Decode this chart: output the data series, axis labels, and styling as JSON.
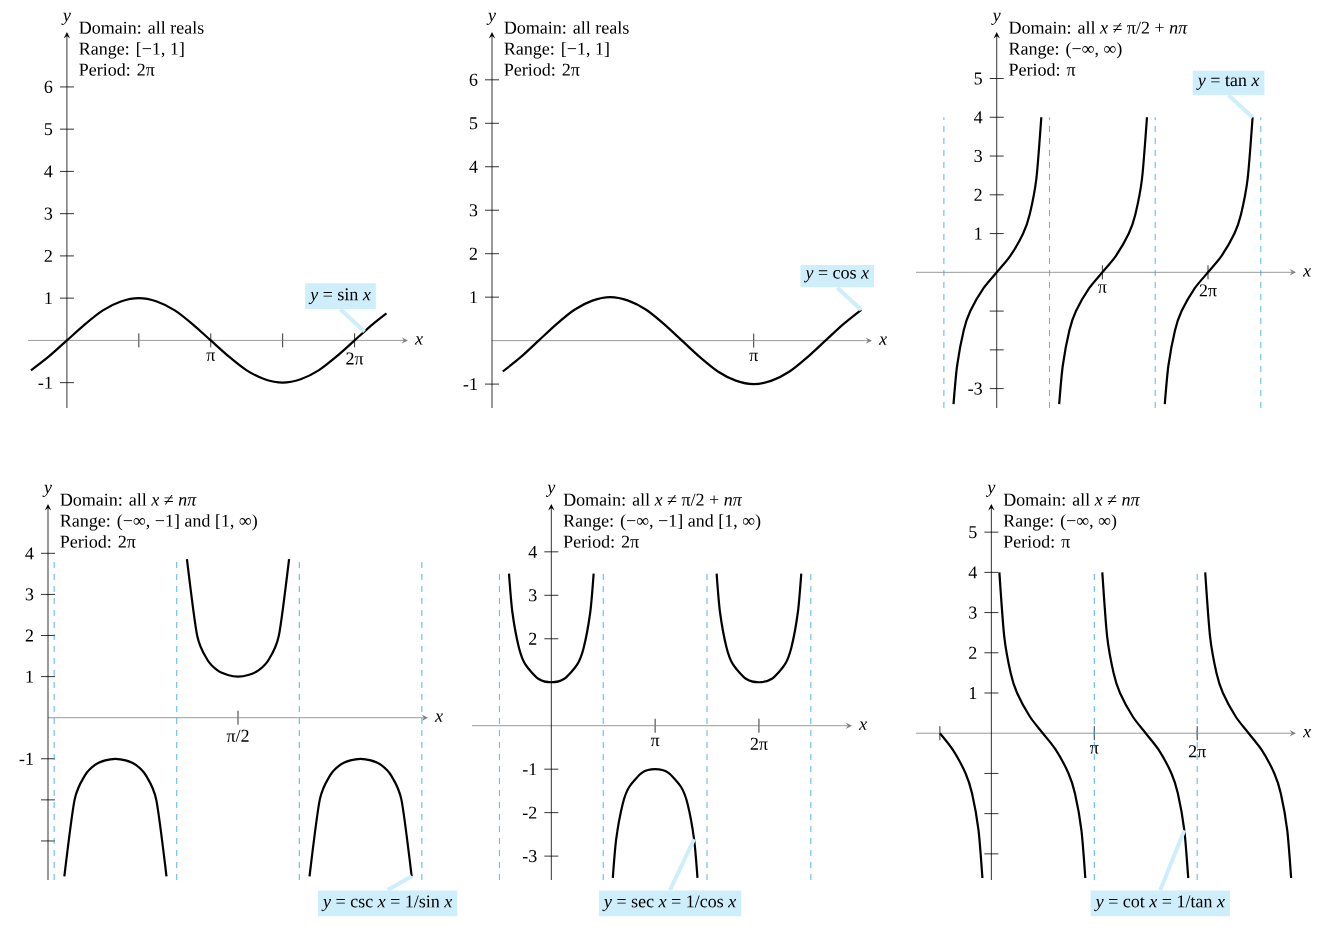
{
  "chart_data": [
    {
      "type": "line",
      "xlabel": "x",
      "ylabel": "y",
      "xlim": [
        -0.85,
        7.45
      ],
      "ylim": [
        -1.6,
        7.3
      ],
      "xticks": [
        {
          "value": 1.5708,
          "label": null
        },
        {
          "value": 3.1416,
          "label": "π"
        },
        {
          "value": 4.7124,
          "label": null
        },
        {
          "value": 6.2832,
          "label": "2π"
        }
      ],
      "yticks": [
        -1,
        1,
        2,
        3,
        4,
        5,
        6
      ],
      "series": [
        {
          "color": "#000000",
          "x": [
            -0.7854,
            -0.3927,
            0,
            0.3927,
            0.7854,
            1.1781,
            1.5708,
            1.9635,
            2.3562,
            2.7489,
            3.1416,
            3.5343,
            3.927,
            4.3197,
            4.7124,
            5.1051,
            5.4978,
            5.8905,
            6.2832,
            6.6759,
            6.98
          ],
          "values": [
            -0.71,
            -0.38,
            0,
            0.38,
            0.71,
            0.92,
            1,
            0.92,
            0.71,
            0.38,
            0,
            -0.38,
            -0.71,
            -0.92,
            -1,
            -0.92,
            -0.71,
            -0.38,
            0,
            0.38,
            0.64
          ]
        }
      ],
      "annotations": [
        "Domain:  all reals",
        "Range:  [−1, 1]",
        "Period:  2π",
        {
          "text": "*y* = sin *x*",
          "x": 6.5,
          "y": 0.21
        }
      ]
    },
    {
      "type": "line",
      "xlabel": "x",
      "ylabel": "y",
      "ylim": [
        -1.55,
        7.1
      ],
      "categories": [
        null,
        null,
        null,
        null,
        null,
        null,
        null,
        null,
        null,
        null,
        null,
        null,
        null,
        null,
        "π",
        null,
        null,
        null,
        null,
        null,
        null
      ],
      "yticks": [
        -1,
        1,
        2,
        3,
        4,
        5,
        6
      ],
      "series": [
        {
          "name": "*y* = cos *x*",
          "color": "#000000",
          "values": [
            -0.71,
            -0.38,
            0,
            0.38,
            0.71,
            0.92,
            1,
            0.92,
            0.71,
            0.38,
            0,
            -0.38,
            -0.71,
            -0.92,
            -1,
            -0.92,
            -0.71,
            -0.38,
            0,
            0.38,
            0.71
          ]
        }
      ],
      "annotations": [
        "Domain:  all reals",
        "Range:  [−1, 1]",
        "Period:  2π"
      ]
    },
    {
      "type": "line",
      "xlabel": "x",
      "ylabel": "y",
      "xlim": [
        -2.4,
        8.9
      ],
      "ylim": [
        -3.5,
        6.2
      ],
      "xticks": [
        {
          "value": 3.1416,
          "label": "π"
        },
        {
          "value": 6.2832,
          "label": "2π"
        }
      ],
      "yticks": [
        -3,
        {
          "value": -2,
          "label": null
        },
        {
          "value": -1,
          "label": null
        },
        1,
        2,
        3,
        4,
        5
      ],
      "series": [
        {
          "color": "#000000",
          "x": [
            -1.285,
            -1.178,
            -0.982,
            -0.785,
            -0.3927,
            0,
            0.3927,
            0.785,
            0.982,
            1.178,
            1.326
          ],
          "values": [
            -3.4,
            -2.41,
            -1.5,
            -1,
            -0.41,
            0,
            0.41,
            1,
            1.5,
            2.41,
            4
          ]
        },
        {
          "color": "#000000",
          "x": [
            1.857,
            1.964,
            2.16,
            2.357,
            2.749,
            3.142,
            3.534,
            3.927,
            4.124,
            4.32,
            4.468
          ],
          "values": [
            -3.4,
            -2.41,
            -1.5,
            -1,
            -0.41,
            0,
            0.41,
            1,
            1.5,
            2.41,
            4
          ]
        },
        {
          "color": "#000000",
          "x": [
            4.998,
            5.105,
            5.301,
            5.498,
            5.89,
            6.283,
            6.676,
            7.069,
            7.265,
            7.461,
            7.609
          ],
          "values": [
            -3.4,
            -2.41,
            -1.5,
            -1,
            -0.41,
            0,
            0.41,
            1,
            1.5,
            2.41,
            4
          ]
        }
      ],
      "ref_lines": [
        {
          "axis": "x",
          "value": -1.5708,
          "color": "#29a3e0",
          "line_style": "dashed"
        },
        {
          "axis": "x",
          "value": 1.5708,
          "color": "#29a3e0",
          "line_style": "dashed"
        },
        {
          "axis": "x",
          "value": 4.7124,
          "color": "#29a3e0",
          "line_style": "dashed"
        },
        {
          "axis": "x",
          "value": 7.854,
          "color": "#29a3e0",
          "line_style": "dashed"
        }
      ],
      "annotations": [
        "Domain:  all *x* ≠ π/2 + *nπ*",
        "Range:  (−∞, ∞)",
        "Period:  π",
        {
          "text": "*y* = tan *x*",
          "x": 7.609,
          "y": 4
        }
      ]
    },
    {
      "type": "line",
      "xlabel": "x",
      "ylabel": "y",
      "ylim": [
        -3.95,
        5.2
      ],
      "categories": [
        null,
        null,
        null,
        null,
        null,
        null,
        null,
        null,
        null,
        null,
        null,
        null,
        null,
        null,
        null,
        null,
        null,
        null,
        "π/2",
        null,
        null,
        null,
        null,
        null,
        null,
        null,
        null,
        null,
        null,
        null,
        null,
        null,
        null,
        null,
        null,
        null,
        null
      ],
      "yticks": [
        {
          "value": -3,
          "label": null
        },
        {
          "value": -2,
          "label": null
        },
        -1,
        1,
        2,
        3,
        4
      ],
      "series": [
        {
          "name": "*y* = csc *x* = 1/sin *x*",
          "color": "#000000",
          "values": [
            null,
            -3.86,
            -2,
            -1.41,
            -1.15,
            -1.04,
            -1,
            -1.04,
            -1.15,
            -1.41,
            -2,
            -3.86,
            null,
            3.86,
            2,
            1.41,
            1.15,
            1.04,
            1,
            1.04,
            1.15,
            1.41,
            2,
            3.86,
            null,
            -3.86,
            -2,
            -1.41,
            -1.15,
            -1.04,
            -1,
            -1.04,
            -1.15,
            -1.41,
            -2,
            -3.86,
            null
          ]
        }
      ],
      "annotations": [
        "Domain:  all *x* ≠ *nπ*",
        "Range:  (−∞, −1] and [1, ∞)",
        "Period:  2π"
      ]
    },
    {
      "type": "line",
      "xlabel": "x",
      "ylabel": "y",
      "xlim": [
        -2.4,
        9.1
      ],
      "ylim": [
        -3.55,
        5.1
      ],
      "xticks": [
        {
          "value": 3.1416,
          "label": "π"
        },
        {
          "value": 6.2832,
          "label": "2π"
        }
      ],
      "yticks": [
        -3,
        -2,
        -1,
        {
          "value": 1,
          "label": null
        },
        2,
        3,
        4
      ],
      "series": [
        {
          "color": "#000000",
          "x": [
            -1.281,
            -1.1781,
            -0.9817,
            -0.7854,
            -0.3927,
            0,
            0.3927,
            0.7854,
            0.9817,
            1.1781,
            1.281
          ],
          "values": [
            3.5,
            2.61,
            1.8,
            1.41,
            1.08,
            1,
            1.08,
            1.41,
            1.8,
            2.61,
            3.5
          ]
        },
        {
          "color": "#000000",
          "x": [
            1.861,
            1.9635,
            2.16,
            2.356,
            2.749,
            3.1416,
            3.534,
            3.927,
            4.124,
            4.32,
            4.423
          ],
          "values": [
            -3.5,
            -2.61,
            -1.8,
            -1.41,
            -1.08,
            -1,
            -1.08,
            -1.41,
            -1.8,
            -2.61,
            -3.5
          ]
        },
        {
          "color": "#000000",
          "x": [
            5.002,
            5.105,
            5.302,
            5.498,
            5.89,
            6.283,
            6.676,
            7.069,
            7.265,
            7.461,
            7.564
          ],
          "values": [
            3.5,
            2.61,
            1.8,
            1.41,
            1.08,
            1,
            1.08,
            1.41,
            1.8,
            2.61,
            3.5
          ]
        }
      ],
      "ref_lines": [
        {
          "axis": "x",
          "value": -1.5708,
          "color": "#29a3e0",
          "line_style": "dashed"
        },
        {
          "axis": "x",
          "value": 1.5708,
          "color": "#29a3e0",
          "line_style": "dashed"
        },
        {
          "axis": "x",
          "value": 4.7124,
          "color": "#29a3e0",
          "line_style": "dashed"
        },
        {
          "axis": "x",
          "value": 7.854,
          "color": "#29a3e0",
          "line_style": "dashed"
        }
      ],
      "annotations": [
        "Domain:  all *x* ≠ π/2 + *nπ*",
        "Range:  (−∞, −1] and [1, ∞)",
        "Period:  2π",
        {
          "text": "*y* = sec *x* = 1/cos *x*",
          "x": 4.32,
          "y": -2.61
        }
      ]
    },
    {
      "type": "line",
      "xlabel": "x",
      "ylabel": "y",
      "xlim": [
        -2.3,
        9.3
      ],
      "ylim": [
        -3.65,
        5.7
      ],
      "xticks": [
        {
          "value": -1.5708,
          "label": null
        },
        {
          "value": 3.1416,
          "label": "π"
        },
        {
          "value": 6.2832,
          "label": "2π"
        }
      ],
      "yticks": [
        {
          "value": -3,
          "label": null
        },
        {
          "value": -2,
          "label": null
        },
        {
          "value": -1,
          "label": null
        },
        1,
        2,
        3,
        4,
        5
      ],
      "series": [
        {
          "color": "#000000",
          "x": [
            -1.5708,
            -1.1781,
            -0.7854,
            -0.589,
            -0.3927,
            -0.273
          ],
          "values": [
            0,
            -0.41,
            -1,
            -1.5,
            -2.41,
            -3.6
          ]
        },
        {
          "color": "#000000",
          "x": [
            0.245,
            0.3927,
            0.589,
            0.7854,
            1.1781,
            1.5708,
            1.9635,
            2.3562,
            2.5525,
            2.7489,
            2.868
          ],
          "values": [
            4,
            2.41,
            1.5,
            1,
            0.41,
            0,
            -0.41,
            -1,
            -1.5,
            -2.41,
            -3.6
          ]
        },
        {
          "color": "#000000",
          "x": [
            3.387,
            3.534,
            3.731,
            3.927,
            4.32,
            4.712,
            5.105,
            5.498,
            5.694,
            5.89,
            6.01
          ],
          "values": [
            4,
            2.41,
            1.5,
            1,
            0.41,
            0,
            -0.41,
            -1,
            -1.5,
            -2.41,
            -3.6
          ]
        },
        {
          "color": "#000000",
          "x": [
            6.528,
            6.676,
            6.872,
            7.069,
            7.461,
            7.854,
            8.247,
            8.639,
            8.836,
            9.032,
            9.151
          ],
          "values": [
            4,
            2.41,
            1.5,
            1,
            0.41,
            0,
            -0.41,
            -1,
            -1.5,
            -2.41,
            -3.6
          ]
        }
      ],
      "ref_lines": [
        {
          "axis": "x",
          "value": 3.1416,
          "color": "#29a3e0",
          "line_style": "dashed"
        },
        {
          "axis": "x",
          "value": 6.2832,
          "color": "#29a3e0",
          "line_style": "dashed"
        }
      ],
      "annotations": [
        "Domain:  all *x* ≠ *nπ*",
        "Range:  (−∞, ∞)",
        "Period:  π",
        {
          "text": "*y* = cot *x* = 1/tan *x*",
          "x": 5.89,
          "y": -2.41
        }
      ]
    }
  ]
}
